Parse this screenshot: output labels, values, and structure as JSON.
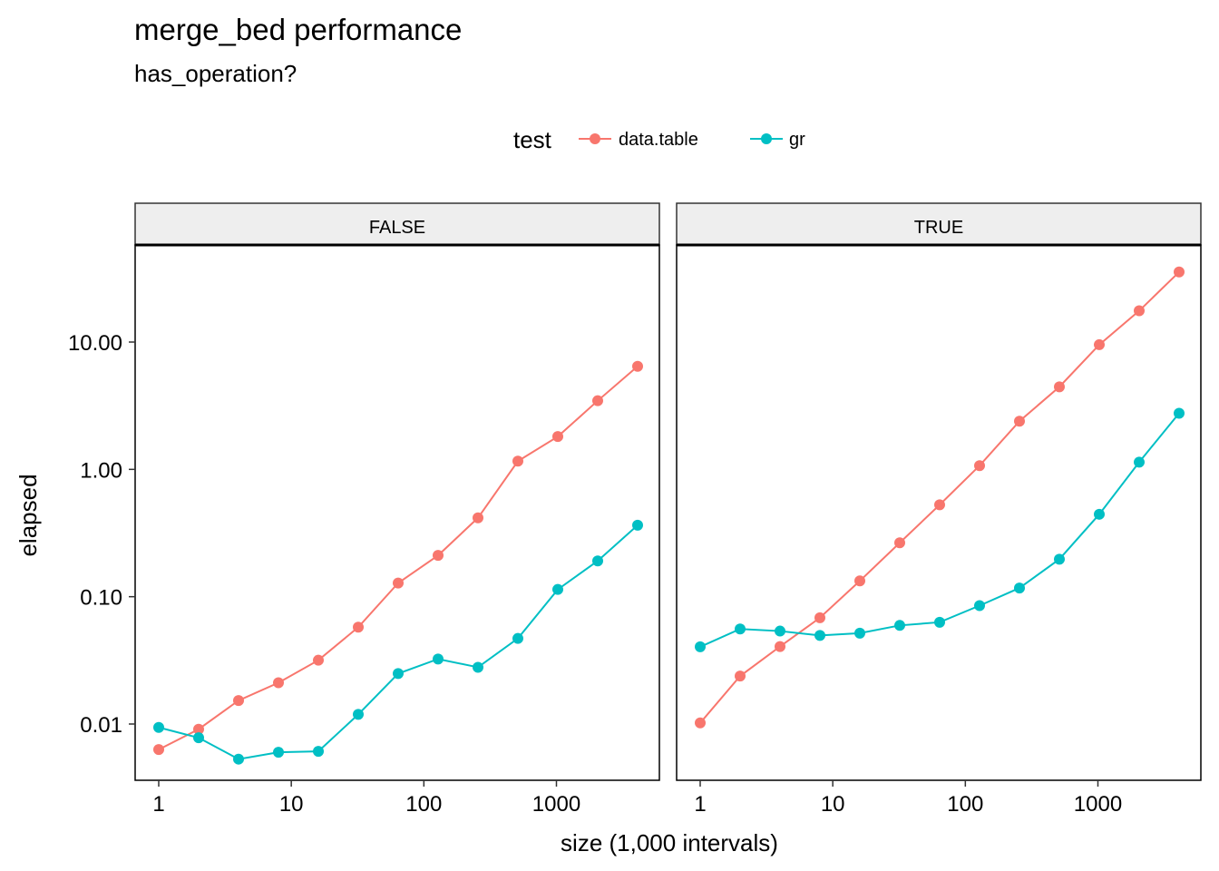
{
  "title": "merge_bed performance",
  "subtitle": "has_operation?",
  "chart_data": {
    "type": "line",
    "title": "merge_bed performance",
    "subtitle": "has_operation?",
    "xlabel": "size (1,000 intervals)",
    "ylabel": "elapsed",
    "x_scale": "log10",
    "y_scale": "log10",
    "x_ticks": [
      1,
      10,
      100,
      1000
    ],
    "x_tick_labels": [
      "1",
      "10",
      "100",
      "1000"
    ],
    "y_ticks": [
      0.01,
      0.1,
      1,
      10
    ],
    "y_tick_labels": [
      "0.01",
      "0.10",
      "1.00",
      "10.00"
    ],
    "legend": {
      "title": "test",
      "position": "top",
      "entries": [
        {
          "name": "data.table",
          "color": "#F8766D"
        },
        {
          "name": "gr",
          "color": "#00BFC4"
        }
      ]
    },
    "x": [
      1,
      2,
      4,
      8,
      16,
      32,
      64,
      128,
      256,
      512,
      1024,
      2048,
      4096
    ],
    "panels": [
      {
        "label": "FALSE",
        "series": [
          {
            "name": "data.table",
            "values": [
              0.0063,
              0.0091,
              0.0153,
              0.0211,
              0.0317,
              0.0576,
              0.128,
              0.211,
              0.416,
              1.16,
              1.81,
              3.46,
              6.45
            ]
          },
          {
            "name": "gr",
            "values": [
              0.0094,
              0.0078,
              0.0053,
              0.006,
              0.0061,
              0.0119,
              0.0249,
              0.0324,
              0.0279,
              0.047,
              0.114,
              0.191,
              0.364
            ]
          }
        ]
      },
      {
        "label": "TRUE",
        "series": [
          {
            "name": "data.table",
            "values": [
              0.0102,
              0.0238,
              0.0406,
              0.0683,
              0.133,
              0.265,
              0.527,
              1.07,
              2.39,
              4.45,
              9.53,
              17.6,
              35.5
            ]
          },
          {
            "name": "gr",
            "values": [
              0.0404,
              0.0558,
              0.0537,
              0.0496,
              0.0517,
              0.0595,
              0.063,
              0.0851,
              0.117,
              0.197,
              0.444,
              1.14,
              2.76
            ]
          }
        ]
      }
    ],
    "grid": false
  }
}
